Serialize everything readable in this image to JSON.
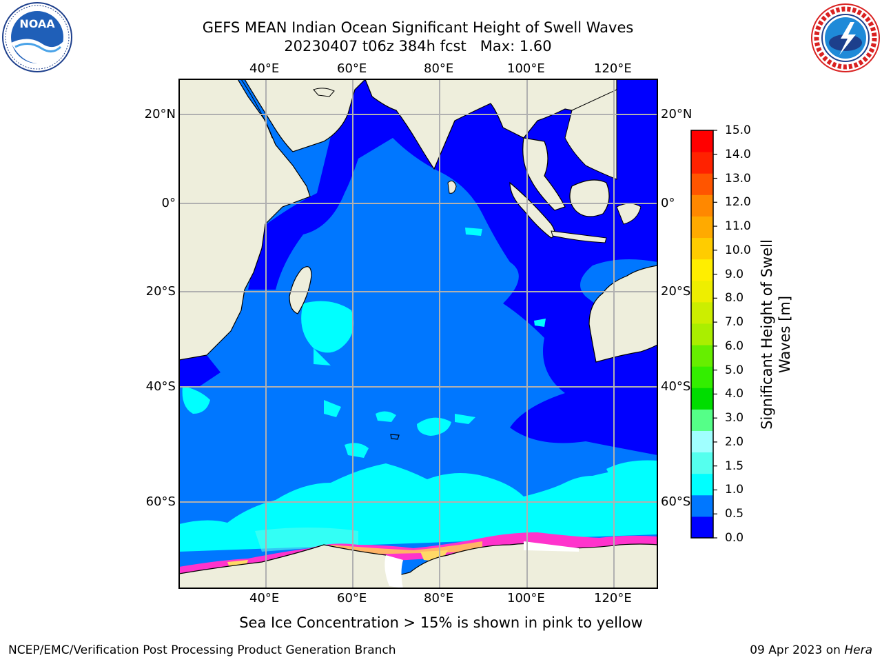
{
  "title": {
    "line1": "GEFS MEAN Indian Ocean Significant Height of Swell Waves",
    "line2": "20230407 t06z 384h fcst   Max: 1.60"
  },
  "map": {
    "lon_ticks_top": [
      "40°E",
      "60°E",
      "80°E",
      "100°E",
      "120°E"
    ],
    "lon_ticks_bottom": [
      "40°E",
      "60°E",
      "80°E",
      "100°E",
      "120°E"
    ],
    "lat_ticks_left": [
      "20°N",
      "0°",
      "20°S",
      "40°S",
      "60°S"
    ],
    "lat_ticks_right": [
      "20°N",
      "0°",
      "20°S",
      "40°S",
      "60°S"
    ],
    "colors": {
      "land": "#eeeedc",
      "ocean_low": "#0000ff",
      "ocean_mid": "#0077ff",
      "ocean_high": "#00ffff",
      "ice_edge": "#ff33cc",
      "ice_mid": "#ffb366",
      "grid": "#b0b0b0"
    }
  },
  "colorbar": {
    "label_line1": "Significant Height of Swell",
    "label_line2": "Waves [m]",
    "ticks": [
      "15.0",
      "14.0",
      "13.0",
      "12.0",
      "11.0",
      "10.0",
      "9.0",
      "8.0",
      "7.0",
      "6.0",
      "5.0",
      "4.0",
      "3.0",
      "2.0",
      "1.5",
      "1.0",
      "0.5",
      "0.0"
    ],
    "bands_bottom_to_top": [
      "#0000ff",
      "#0077ff",
      "#00ffff",
      "#55ffee",
      "#a0ffff",
      "#55ff88",
      "#00dd00",
      "#33ee00",
      "#66ee00",
      "#aaee00",
      "#ccee00",
      "#eeee00",
      "#ffee00",
      "#ffcc00",
      "#ffaa00",
      "#ff8800",
      "#ff5500",
      "#ff2200",
      "#ff0000"
    ]
  },
  "logos": {
    "noaa_text": "NOAA",
    "nws_text": "NATIONAL WEATHER SERVICE"
  },
  "footnote": "Sea Ice Concentration > 15% is shown in pink to yellow",
  "credit": "NCEP/EMC/Verification Post Processing Product Generation Branch",
  "stamp_date": "09 Apr 2023 on ",
  "stamp_host": "Hera"
}
